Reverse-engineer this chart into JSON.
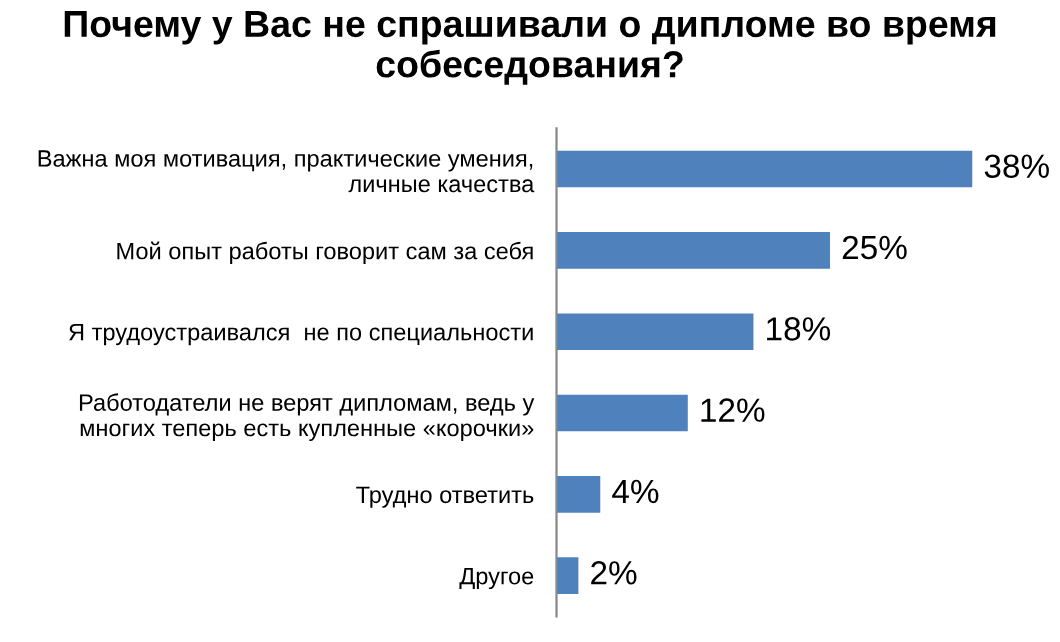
{
  "chart_data": {
    "type": "bar",
    "orientation": "horizontal",
    "title": "Почему у Вас не спрашивали о дипломе во время собеседования?",
    "categories": [
      "Важна моя мотивация, практические умения,\nличные качества",
      "Мой опыт работы говорит сам за себя",
      "Я трудоустраивался  не по специальности",
      "Работодатели не верят дипломам, ведь у\nмногих теперь есть купленные «корочки»",
      "Трудно ответить",
      "Другое"
    ],
    "values": [
      38,
      25,
      18,
      12,
      4,
      2
    ],
    "value_labels": [
      "38%",
      "25%",
      "18%",
      "12%",
      "4%",
      "2%"
    ],
    "color": "#4f81bd",
    "grid": false,
    "legend": false
  }
}
